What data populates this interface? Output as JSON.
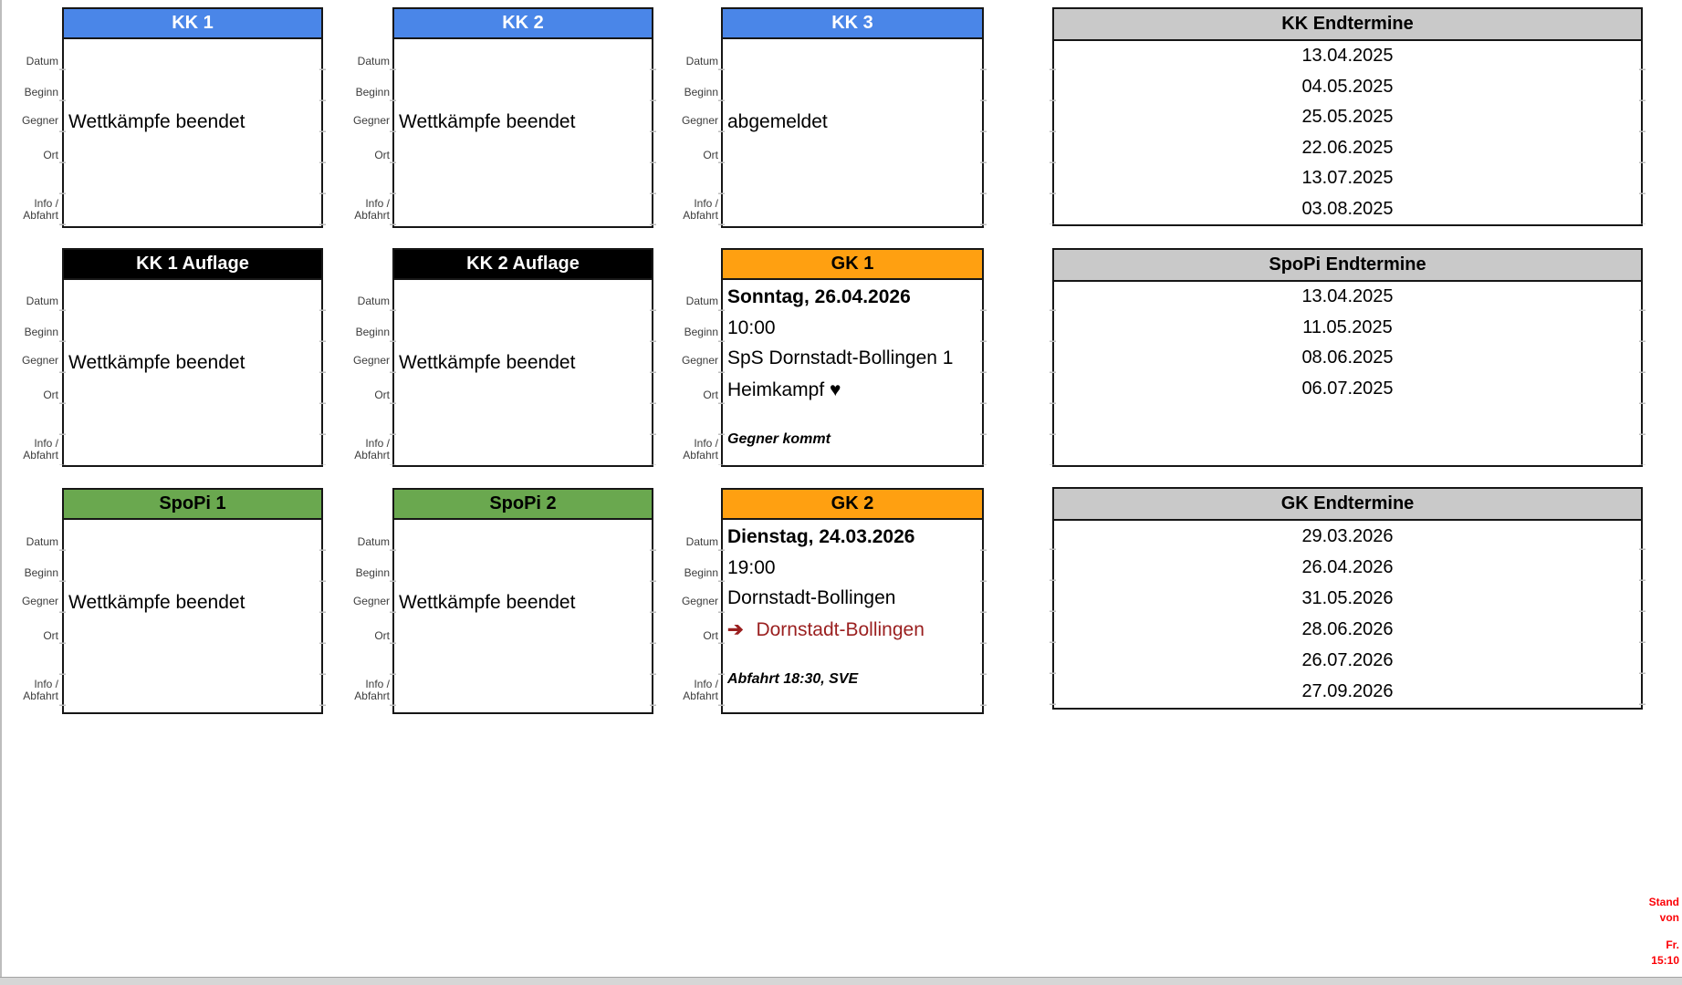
{
  "side_labels": {
    "datum": "Datum",
    "beginn": "Beginn",
    "gegner": "Gegner",
    "ort": "Ort",
    "info": "Info /",
    "abfahrt": "Abfahrt"
  },
  "cards": {
    "kk1": {
      "title": "KK 1",
      "status": "Wettkämpfe beendet"
    },
    "kk2": {
      "title": "KK 2",
      "status": "Wettkämpfe beendet"
    },
    "kk3": {
      "title": "KK 3",
      "status": "abgemeldet"
    },
    "kk1_auflage": {
      "title": "KK 1 Auflage",
      "status": "Wettkämpfe beendet"
    },
    "kk2_auflage": {
      "title": "KK 2 Auflage",
      "status": "Wettkämpfe beendet"
    },
    "gk1": {
      "title": "GK 1",
      "datum": "Sonntag, 26.04.2026",
      "beginn": "10:00",
      "gegner": "SpS Dornstadt-Bollingen 1",
      "ort": "Heimkampf",
      "info": "Gegner kommt"
    },
    "spopi1": {
      "title": "SpoPi 1",
      "status": "Wettkämpfe beendet"
    },
    "spopi2": {
      "title": "SpoPi 2",
      "status": "Wettkämpfe beendet"
    },
    "gk2": {
      "title": "GK 2",
      "datum": "Dienstag, 24.03.2026",
      "beginn": "19:00",
      "gegner": "Dornstadt-Bollingen",
      "ort": "Dornstadt-Bollingen",
      "info": "Abfahrt 18:30, SVE"
    }
  },
  "icons": {
    "heart": "♥",
    "arrow_right": "➔"
  },
  "termine": {
    "kk": {
      "title": "KK Endtermine",
      "dates": [
        "13.04.2025",
        "04.05.2025",
        "25.05.2025",
        "22.06.2025",
        "13.07.2025",
        "03.08.2025"
      ]
    },
    "spopi": {
      "title": "SpoPi Endtermine",
      "dates": [
        "13.04.2025",
        "11.05.2025",
        "08.06.2025",
        "06.07.2025"
      ]
    },
    "gk": {
      "title": "GK Endtermine",
      "dates": [
        "29.03.2026",
        "26.04.2026",
        "31.05.2026",
        "28.06.2026",
        "26.07.2026",
        "27.09.2026"
      ]
    }
  },
  "status_note": {
    "lines": [
      "Stand",
      "von",
      "Fr.",
      "15:10"
    ]
  },
  "colors": {
    "blue": "#4a86e8",
    "black_header": "#000000",
    "green": "#6aa84f",
    "orange": "#ffa011",
    "header_gray": "#c9c9c9",
    "note_red": "#fb0207",
    "dark_red": "#9a1f1f"
  }
}
